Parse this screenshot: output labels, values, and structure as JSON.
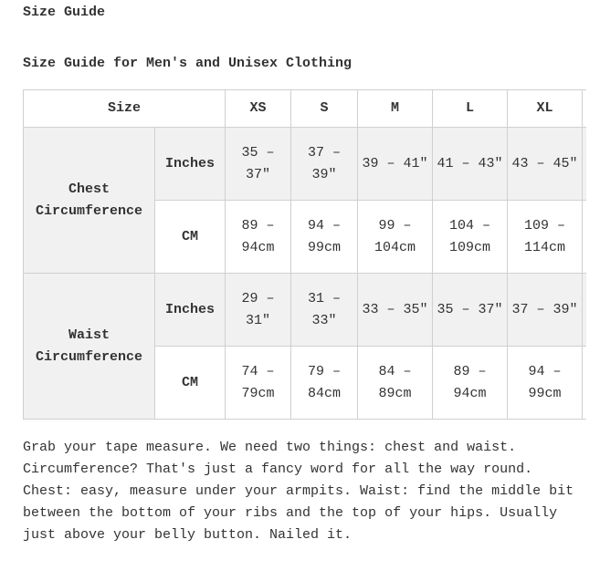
{
  "title": "Size Guide",
  "subtitle": "Size Guide for Men's and Unisex Clothing",
  "table": {
    "size_header": "Size",
    "sizes": [
      "XS",
      "S",
      "M",
      "L",
      "XL"
    ],
    "groups": [
      {
        "label": "Chest Circumference",
        "rows": [
          {
            "unit": "Inches",
            "values": [
              "35 – 37\"",
              "37 – 39\"",
              "39 – 41\"",
              "41 – 43\"",
              "43 – 45\""
            ]
          },
          {
            "unit": "CM",
            "values": [
              "89 – 94cm",
              "94 – 99cm",
              "99 – 104cm",
              "104 – 109cm",
              "109 – 114cm"
            ]
          }
        ]
      },
      {
        "label": "Waist Circumference",
        "rows": [
          {
            "unit": "Inches",
            "values": [
              "29 – 31\"",
              "31 – 33\"",
              "33 – 35\"",
              "35 – 37\"",
              "37 – 39\""
            ]
          },
          {
            "unit": "CM",
            "values": [
              "74 – 79cm",
              "79 – 84cm",
              "84 – 89cm",
              "89 – 94cm",
              "94 – 99cm"
            ]
          }
        ]
      }
    ]
  },
  "note": "Grab your tape measure. We need two things: chest and waist. Circumference? That's just a fancy word for all the way round. Chest: easy, measure under your armpits. Waist: find the middle bit between the bottom of your ribs and the top of your hips. Usually just above your belly button. Nailed it."
}
